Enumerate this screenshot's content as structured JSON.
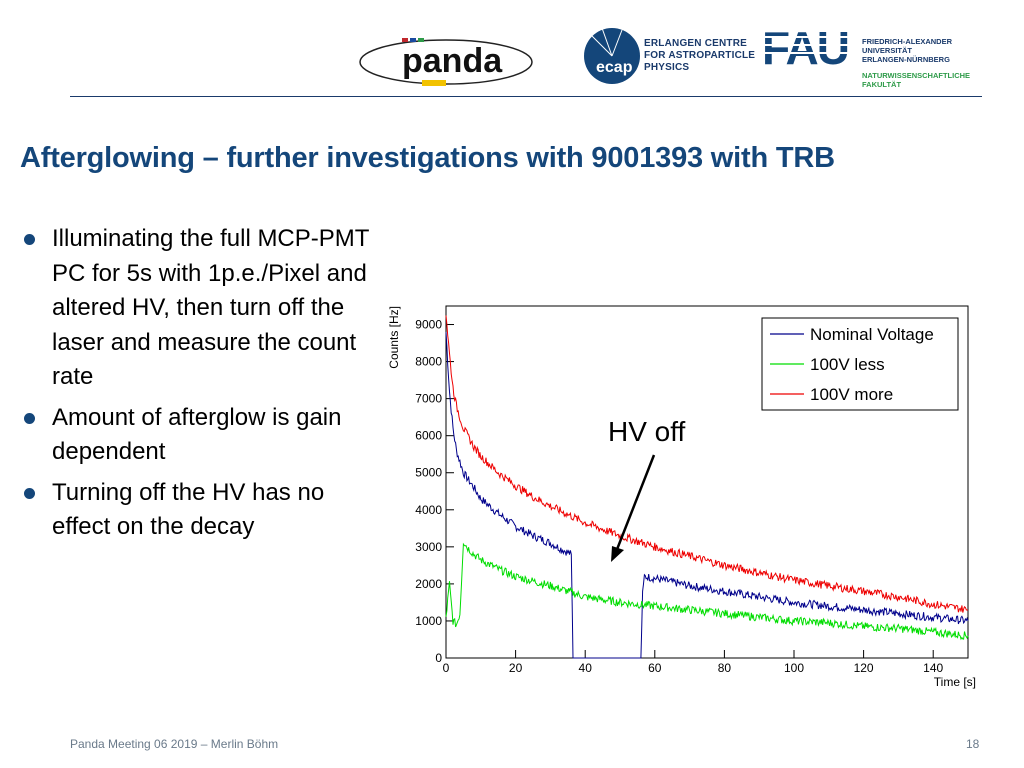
{
  "header": {
    "logos": {
      "panda": "panda",
      "ecap_lines": [
        "ERLANGEN CENTRE",
        "FOR ASTROPARTICLE",
        "PHYSICS"
      ],
      "fau": "FAU",
      "fau_name_lines": [
        "FRIEDRICH-ALEXANDER",
        "UNIVERSITÄT",
        "ERLANGEN-NÜRNBERG"
      ],
      "fau_faculty_lines": [
        "NATURWISSENSCHAFTLICHE",
        "FAKULTÄT"
      ],
      "ecap_logo": "ecap"
    },
    "colors": {
      "brand_blue": "#14467a",
      "fau_green": "#2e9b49"
    }
  },
  "slide": {
    "title": "Afterglowing – further investigations with 9001393 with TRB",
    "bullets": [
      "Illuminating the full MCP-PMT PC for 5s with 1p.e./Pixel and altered HV, then turn off the laser and measure the count rate",
      "Amount of afterglow is gain dependent",
      "Turning off the HV has no effect on the decay"
    ]
  },
  "footer": {
    "left": "Panda Meeting 06 2019 – Merlin Böhm",
    "page": "18"
  },
  "chart_data": {
    "type": "line",
    "xlabel": "Time [s]",
    "ylabel": "Counts [Hz]",
    "xlim": [
      0,
      150
    ],
    "ylim": [
      0,
      9500
    ],
    "xticks": [
      "0",
      "20",
      "40",
      "60",
      "80",
      "100",
      "120",
      "140"
    ],
    "yticks": [
      "0",
      "1000",
      "2000",
      "3000",
      "4000",
      "5000",
      "6000",
      "7000",
      "8000",
      "9000"
    ],
    "legend_position": "top-right",
    "annotation": "HV off",
    "series": [
      {
        "name": "Nominal Voltage",
        "color": "#00008b",
        "x": [
          0,
          1,
          2,
          3,
          5,
          8,
          10,
          15,
          20,
          25,
          30,
          35,
          36,
          36.5,
          56,
          56.5,
          57,
          60,
          70,
          80,
          90,
          100,
          110,
          120,
          130,
          140,
          150
        ],
        "y": [
          8800,
          7200,
          6200,
          5600,
          5000,
          4600,
          4300,
          3900,
          3550,
          3300,
          3100,
          2850,
          2800,
          0,
          0,
          1800,
          2200,
          2150,
          1950,
          1800,
          1650,
          1500,
          1400,
          1300,
          1200,
          1100,
          1000
        ]
      },
      {
        "name": "100V less",
        "color": "#00dd00",
        "x": [
          0,
          1,
          2,
          3,
          4,
          5,
          6,
          8,
          10,
          15,
          20,
          30,
          35,
          40,
          50,
          60,
          70,
          80,
          90,
          100,
          110,
          120,
          130,
          140,
          150
        ],
        "y": [
          1100,
          2000,
          1000,
          900,
          1200,
          3150,
          3000,
          2800,
          2650,
          2400,
          2200,
          1950,
          1800,
          1650,
          1500,
          1400,
          1300,
          1200,
          1100,
          1000,
          950,
          850,
          800,
          700,
          600
        ]
      },
      {
        "name": "100V more",
        "color": "#ee0000",
        "x": [
          0,
          1,
          2,
          3,
          5,
          8,
          10,
          15,
          20,
          25,
          30,
          40,
          50,
          60,
          70,
          80,
          90,
          100,
          110,
          120,
          130,
          140,
          150
        ],
        "y": [
          9300,
          8200,
          7300,
          6800,
          6200,
          5700,
          5450,
          5000,
          4650,
          4350,
          4100,
          3650,
          3300,
          3000,
          2750,
          2500,
          2300,
          2100,
          1950,
          1800,
          1650,
          1450,
          1300
        ]
      }
    ]
  }
}
